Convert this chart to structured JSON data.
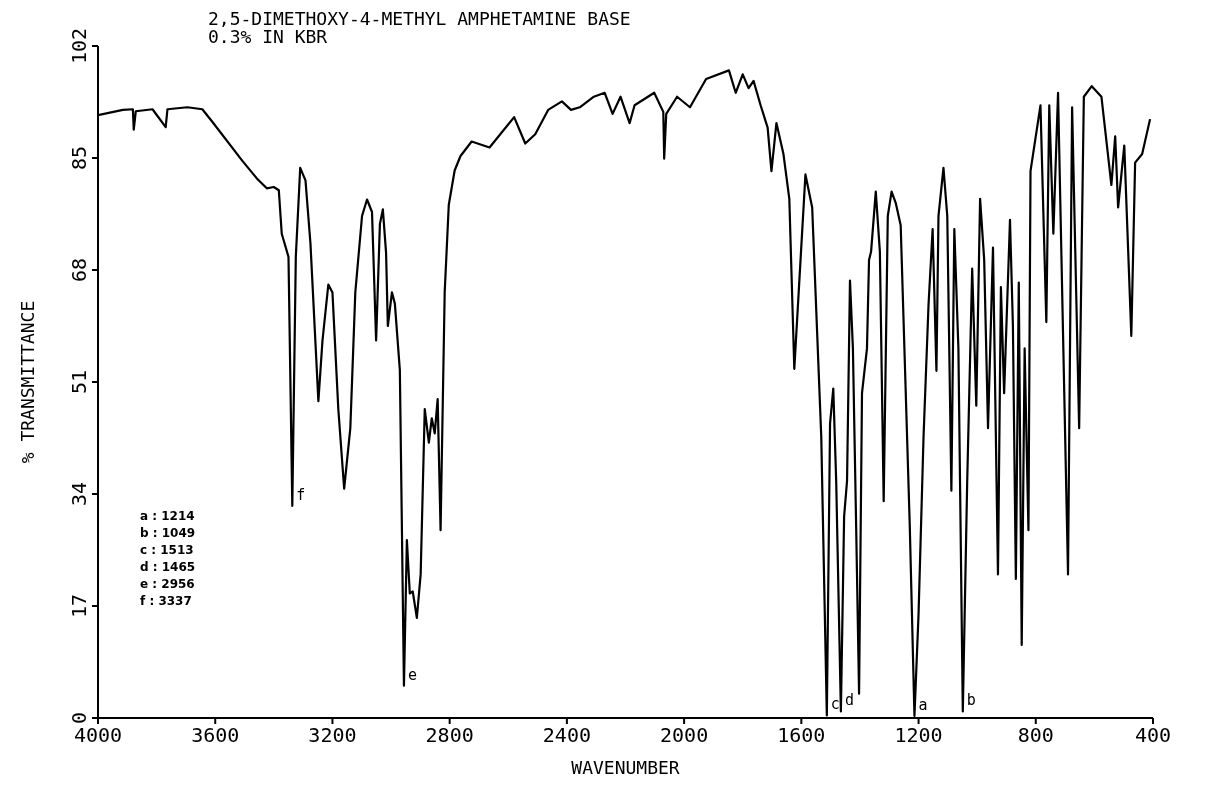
{
  "chart_data": {
    "type": "line",
    "title": "2,5-DIMETHOXY-4-METHYL AMPHETAMINE BASE",
    "subtitle": "0.3% IN KBR",
    "xlabel": "WAVENUMBER",
    "ylabel": "% TRANSMITTANCE",
    "xlim": [
      4000,
      400
    ],
    "xticks": [
      4000,
      3600,
      3200,
      2800,
      2400,
      2000,
      1600,
      1200,
      800,
      400
    ],
    "ylim": [
      0,
      102
    ],
    "yticks": [
      0,
      17,
      34,
      51,
      68,
      85,
      102
    ],
    "grid": false,
    "legend": false,
    "marker": "none",
    "line_style": "solid",
    "series": [
      {
        "color": "#000000",
        "x": [
          4000,
          3915,
          3881,
          3878,
          3871,
          3814,
          3769,
          3763,
          3695,
          3644,
          3610,
          3508,
          3458,
          3424,
          3400,
          3383,
          3373,
          3350,
          3337,
          3325,
          3310,
          3292,
          3275,
          3248,
          3234,
          3214,
          3200,
          3180,
          3160,
          3139,
          3122,
          3099,
          3082,
          3065,
          3051,
          3038,
          3028,
          3017,
          3011,
          2997,
          2987,
          2970,
          2956,
          2946,
          2936,
          2926,
          2912,
          2899,
          2885,
          2871,
          2861,
          2851,
          2841,
          2831,
          2817,
          2803,
          2783,
          2763,
          2725,
          2664,
          2580,
          2542,
          2508,
          2464,
          2417,
          2386,
          2356,
          2308,
          2271,
          2244,
          2217,
          2186,
          2169,
          2102,
          2071,
          2068,
          2061,
          2024,
          1980,
          1925,
          1847,
          1824,
          1800,
          1780,
          1763,
          1739,
          1715,
          1702,
          1685,
          1661,
          1641,
          1624,
          1586,
          1563,
          1532,
          1513,
          1502,
          1491,
          1481,
          1465,
          1454,
          1444,
          1434,
          1424,
          1413,
          1403,
          1393,
          1376,
          1369,
          1362,
          1346,
          1332,
          1319,
          1305,
          1292,
          1278,
          1261,
          1230,
          1214,
          1200,
          1183,
          1166,
          1152,
          1139,
          1132,
          1115,
          1102,
          1088,
          1078,
          1064,
          1049,
          1034,
          1017,
          1003,
          990,
          976,
          963,
          946,
          929,
          919,
          908,
          888,
          878,
          868,
          858,
          848,
          838,
          825,
          818,
          784,
          764,
          754,
          740,
          724,
          690,
          676,
          652,
          636,
          609,
          576,
          542,
          529,
          519,
          498,
          474,
          461,
          437,
          410
        ],
        "values": [
          91.5,
          92.3,
          92.4,
          89.3,
          92.1,
          92.4,
          89.7,
          92.4,
          92.7,
          92.4,
          90.5,
          84.6,
          81.9,
          80.4,
          80.6,
          80.1,
          73.5,
          70,
          32.2,
          70,
          83.5,
          81.6,
          72,
          48.1,
          57.3,
          65.8,
          64.6,
          46.9,
          34.8,
          44,
          64.6,
          76.2,
          78.7,
          76.8,
          57.3,
          75,
          77.2,
          70.6,
          59.5,
          64.6,
          62.9,
          52.8,
          4.9,
          27,
          18.9,
          19.2,
          15.2,
          21.8,
          46.9,
          41.8,
          45.5,
          43.2,
          48.4,
          28.5,
          64.6,
          77.9,
          83.1,
          85.3,
          87.5,
          86.6,
          91.2,
          87.2,
          88.6,
          92.3,
          93.6,
          92.3,
          92.7,
          94.3,
          94.9,
          91.7,
          94.3,
          90.3,
          93,
          94.9,
          92,
          84.9,
          91.7,
          94.3,
          92.7,
          97,
          98.3,
          94.9,
          97.7,
          95.6,
          96.7,
          93,
          89.6,
          83,
          90.3,
          85.6,
          78.8,
          53,
          82.5,
          77.5,
          42.7,
          0.4,
          44.7,
          50,
          35.9,
          1,
          30.6,
          36,
          66.4,
          56.1,
          29.2,
          3.7,
          49.3,
          56.1,
          69.5,
          70.8,
          79.9,
          70.8,
          32.9,
          76.2,
          79.9,
          78.2,
          74.8,
          29.2,
          0.3,
          15.8,
          42.7,
          62.7,
          74.2,
          52.7,
          76.2,
          83.5,
          76.2,
          34.5,
          74.2,
          56.1,
          1,
          35.9,
          68.2,
          47.4,
          78.8,
          69.5,
          44,
          71.4,
          21.8,
          65.4,
          49.3,
          75.6,
          59.5,
          21.1,
          66.1,
          11.1,
          56.1,
          28.5,
          83,
          93,
          60.1,
          93,
          73.5,
          94.9,
          21.8,
          92.7,
          44,
          94.3,
          95.9,
          94.3,
          80.9,
          88.3,
          77.5,
          86.9,
          58,
          84.3,
          85.6,
          90.9
        ]
      }
    ],
    "annotations": [
      "a : 1214",
      "b : 1049",
      "c : 1513",
      "d : 1465",
      "e : 2956",
      "f : 3337",
      {
        "text": "a",
        "x": 1214,
        "y": 0.3
      },
      {
        "text": "b",
        "x": 1049,
        "y": 1
      },
      {
        "text": "c",
        "x": 1513,
        "y": 0.4
      },
      {
        "text": "d",
        "x": 1465,
        "y": 1
      },
      {
        "text": "e",
        "x": 2956,
        "y": 4.9
      },
      {
        "text": "f",
        "x": 3337,
        "y": 32.2
      }
    ]
  }
}
